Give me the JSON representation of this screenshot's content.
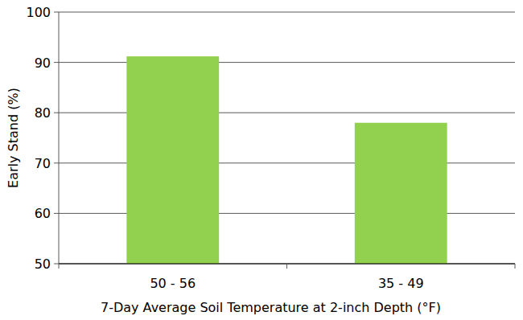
{
  "chart_data": {
    "type": "bar",
    "x_label": "7-Day Average Soil Temperature at 2-inch Depth (°F)",
    "y_label": "Early Stand (%)",
    "categories": [
      "50 - 56",
      "35 - 49"
    ],
    "values": [
      91.2,
      78
    ],
    "color": "#92d050",
    "ylim": [
      50,
      100
    ],
    "yticks": [
      50,
      60,
      70,
      80,
      90,
      100
    ],
    "grid": true
  }
}
